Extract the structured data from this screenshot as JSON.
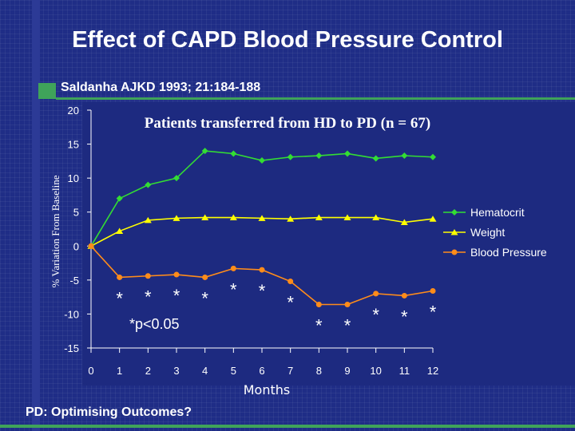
{
  "slide": {
    "title": "Effect of CAPD Blood Pressure Control",
    "citation": "Saldanha AJKD 1993; 21:184-188",
    "footer": "PD: Optimising Outcomes?"
  },
  "colors": {
    "background": "#1f2d86",
    "accent": "#3fa35a",
    "hematocrit": "#33dd33",
    "weight": "#ffff00",
    "blood_pressure": "#ff8c1a"
  },
  "chart_data": {
    "type": "line",
    "title": "Patients transferred from HD to PD (n = 67)",
    "xlabel": "Months",
    "ylabel": "% Variation From Baseline",
    "x": [
      0,
      1,
      2,
      3,
      4,
      5,
      6,
      7,
      8,
      9,
      10,
      11,
      12
    ],
    "xlim": [
      0,
      12
    ],
    "ylim": [
      -15,
      20
    ],
    "yticks": [
      20,
      15,
      10,
      5,
      0,
      -5,
      -10,
      -15
    ],
    "series": [
      {
        "name": "Hematocrit",
        "marker": "diamond",
        "values": [
          0,
          7,
          9,
          10,
          14,
          13.6,
          12.6,
          13.1,
          13.3,
          13.6,
          12.9,
          13.3,
          13.1
        ]
      },
      {
        "name": "Weight",
        "marker": "triangle",
        "values": [
          0,
          2.2,
          3.8,
          4.1,
          4.2,
          4.2,
          4.1,
          4.0,
          4.2,
          4.2,
          4.2,
          3.5,
          4.0
        ]
      },
      {
        "name": "Blood Pressure",
        "marker": "circle",
        "values": [
          0,
          -4.6,
          -4.4,
          -4.2,
          -4.6,
          -3.3,
          -3.5,
          -5.2,
          -8.6,
          -8.6,
          -7.0,
          -7.3,
          -6.6
        ]
      }
    ],
    "legend_position": "right",
    "significance_marker": "*",
    "significance_months": [
      1,
      2,
      3,
      4,
      5,
      6,
      7,
      8,
      9,
      10,
      11,
      12
    ],
    "significance_note": "*p<0.05"
  }
}
